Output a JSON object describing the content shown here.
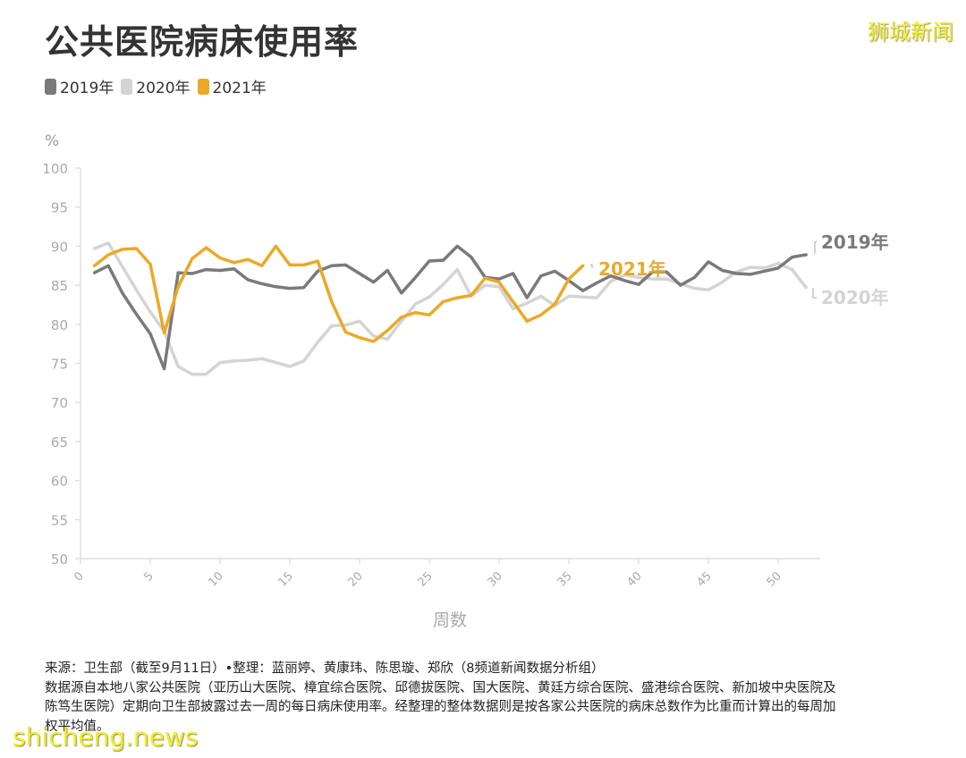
{
  "header": {
    "title": "公共医院病床使用率",
    "brand": "狮城新闻"
  },
  "legend": [
    {
      "label": "2019年",
      "color": "#7a7a7a"
    },
    {
      "label": "2020年",
      "color": "#d4d4d4"
    },
    {
      "label": "2021年",
      "color": "#eaa928"
    }
  ],
  "axis": {
    "unit": "%",
    "xlabel": "周数"
  },
  "footer": {
    "line1": "来源：卫生部（截至9月11日）•整理：蓝丽婷、黄康玮、陈思璇、郑欣（8频道新闻数据分析组）",
    "line2": "数据源自本地八家公共医院（亚历山大医院、樟宜综合医院、邱德拔医院、国大医院、黄廷方综合医院、盛港综合医院、新加坡中央医院及",
    "line3": "陈笃生医院）定期向卫生部披露过去一周的每日病床使用率。经整理的整体数据则是按各家公共医院的病床总数作为比重而计算出的每周加",
    "line4": "权平均值。"
  },
  "watermark": "shicheng.news",
  "chart_data": {
    "type": "line",
    "title": "公共医院病床使用率",
    "xlabel": "周数",
    "ylabel": "%",
    "ylim": [
      50,
      100
    ],
    "xlim": [
      0,
      53
    ],
    "yticks": [
      50,
      55,
      60,
      65,
      70,
      75,
      80,
      85,
      90,
      95,
      100
    ],
    "xticks": [
      0,
      5,
      10,
      15,
      20,
      25,
      30,
      35,
      40,
      45,
      50
    ],
    "grid": false,
    "legend_position": "top-left",
    "series": [
      {
        "name": "2019年",
        "color": "#7a7a7a",
        "end_label": "2019年",
        "x": [
          1,
          2,
          3,
          4,
          5,
          6,
          7,
          8,
          9,
          10,
          11,
          12,
          13,
          14,
          15,
          16,
          17,
          18,
          19,
          20,
          21,
          22,
          23,
          24,
          25,
          26,
          27,
          28,
          29,
          30,
          31,
          32,
          33,
          34,
          35,
          36,
          37,
          38,
          39,
          40,
          41,
          42,
          43,
          44,
          45,
          46,
          47,
          48,
          49,
          50,
          51,
          52
        ],
        "values": [
          86.6,
          87.5,
          84.0,
          81.3,
          78.8,
          74.3,
          86.6,
          86.5,
          87.0,
          86.9,
          87.1,
          85.7,
          85.2,
          84.8,
          84.6,
          84.7,
          86.8,
          87.5,
          87.6,
          86.5,
          85.4,
          86.9,
          84.0,
          86.0,
          88.1,
          88.2,
          90.0,
          88.6,
          86.0,
          85.8,
          86.5,
          83.4,
          86.2,
          86.8,
          85.6,
          84.3,
          85.3,
          86.2,
          85.6,
          85.1,
          86.7,
          86.7,
          85.0,
          86.0,
          88.0,
          86.9,
          86.5,
          86.4,
          86.8,
          87.2,
          88.6,
          88.9
        ]
      },
      {
        "name": "2020年",
        "color": "#d4d4d4",
        "end_label": "2020年",
        "x": [
          1,
          2,
          3,
          4,
          5,
          6,
          7,
          8,
          9,
          10,
          11,
          12,
          13,
          14,
          15,
          16,
          17,
          18,
          19,
          20,
          21,
          22,
          23,
          24,
          25,
          26,
          27,
          28,
          29,
          30,
          31,
          32,
          33,
          34,
          35,
          36,
          37,
          38,
          39,
          40,
          41,
          42,
          43,
          44,
          45,
          46,
          47,
          48,
          49,
          50,
          51,
          52
        ],
        "values": [
          89.7,
          90.4,
          87.4,
          84.4,
          81.6,
          79.1,
          74.6,
          73.6,
          73.6,
          75.1,
          75.3,
          75.4,
          75.6,
          75.1,
          74.6,
          75.3,
          77.7,
          79.8,
          79.9,
          80.4,
          78.5,
          78.1,
          80.4,
          82.6,
          83.5,
          85.1,
          87.0,
          83.6,
          85.0,
          84.8,
          82.0,
          82.7,
          83.6,
          82.4,
          83.6,
          83.5,
          83.4,
          85.5,
          86.3,
          86.0,
          85.8,
          85.8,
          85.2,
          84.6,
          84.4,
          85.4,
          86.7,
          87.3,
          87.2,
          87.8,
          87.0,
          84.7
        ]
      },
      {
        "name": "2021年",
        "color": "#eaa928",
        "end_label": "2021年",
        "x": [
          1,
          2,
          3,
          4,
          5,
          6,
          7,
          8,
          9,
          10,
          11,
          12,
          13,
          14,
          15,
          16,
          17,
          18,
          19,
          20,
          21,
          22,
          23,
          24,
          25,
          26,
          27,
          28,
          29,
          30,
          31,
          32,
          33,
          34,
          35,
          36
        ],
        "values": [
          87.5,
          88.9,
          89.6,
          89.7,
          87.7,
          78.9,
          84.8,
          88.4,
          89.8,
          88.5,
          87.9,
          88.3,
          87.5,
          90.0,
          87.6,
          87.6,
          88.1,
          82.9,
          79.0,
          78.3,
          77.8,
          79.2,
          80.9,
          81.5,
          81.2,
          82.9,
          83.4,
          83.7,
          85.9,
          85.4,
          82.9,
          80.4,
          81.2,
          82.6,
          85.8,
          87.5
        ]
      }
    ]
  }
}
